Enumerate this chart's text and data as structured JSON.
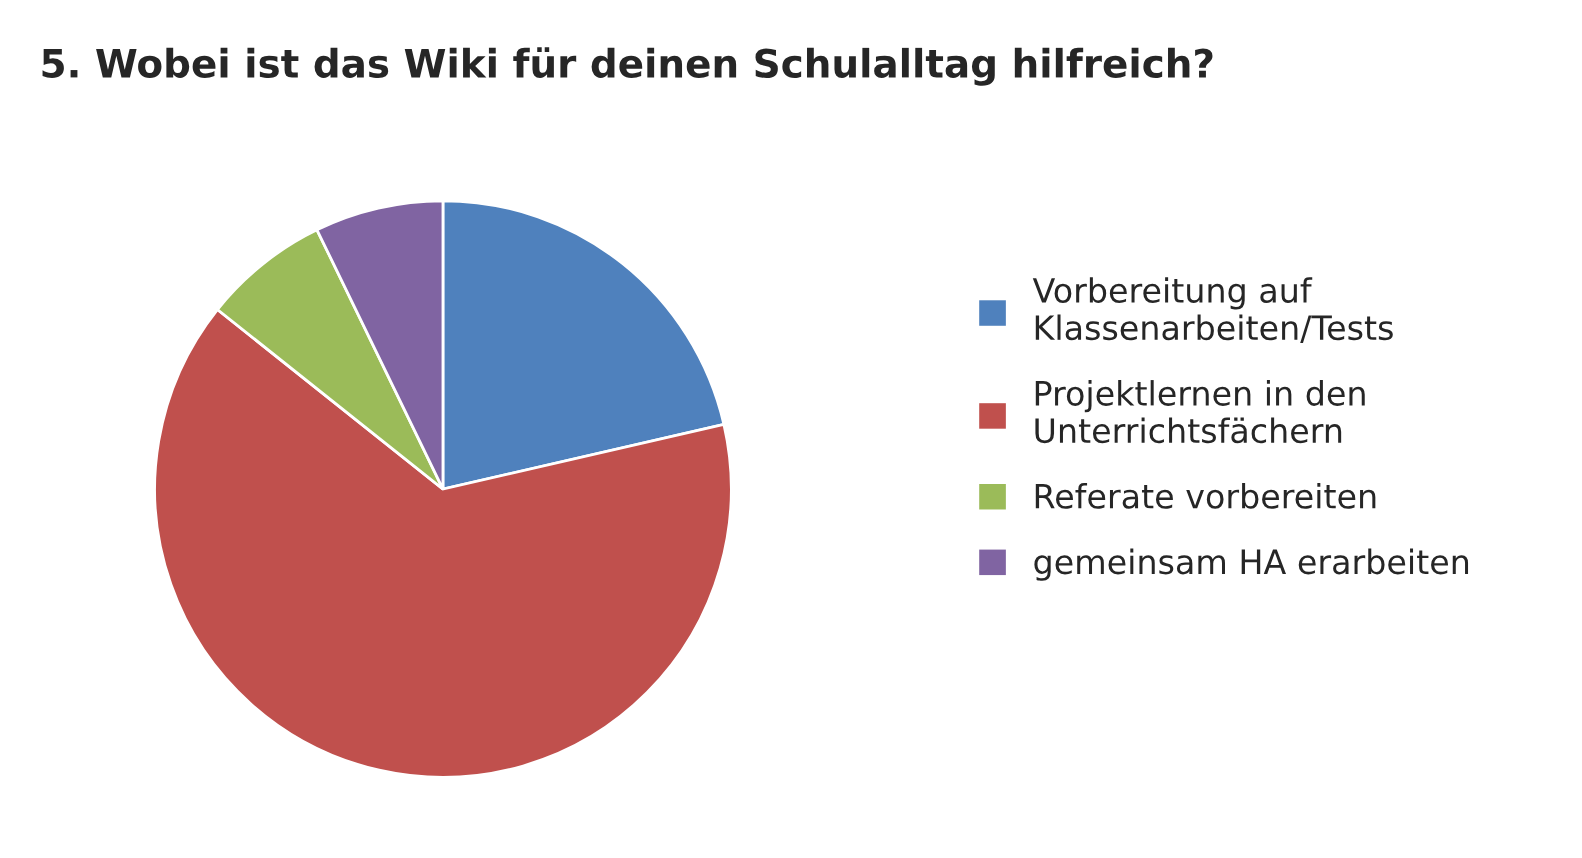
{
  "chart_data": {
    "type": "pie",
    "title": "5. Wobei ist das Wiki für deinen Schulalltag hilfreich?",
    "categories": [
      "Vorbereitung auf\nKlassenarbeiten/Tests",
      "Projektlernen in den\nUnterrichtsfächern",
      "Referate vorbereiten",
      "gemeinsam HA erarbeiten"
    ],
    "values": [
      21.4,
      64.3,
      7.1,
      7.2
    ],
    "colors": [
      "#4f81bd",
      "#c0504d",
      "#9bbb59",
      "#8064a2"
    ],
    "legend": "right"
  }
}
